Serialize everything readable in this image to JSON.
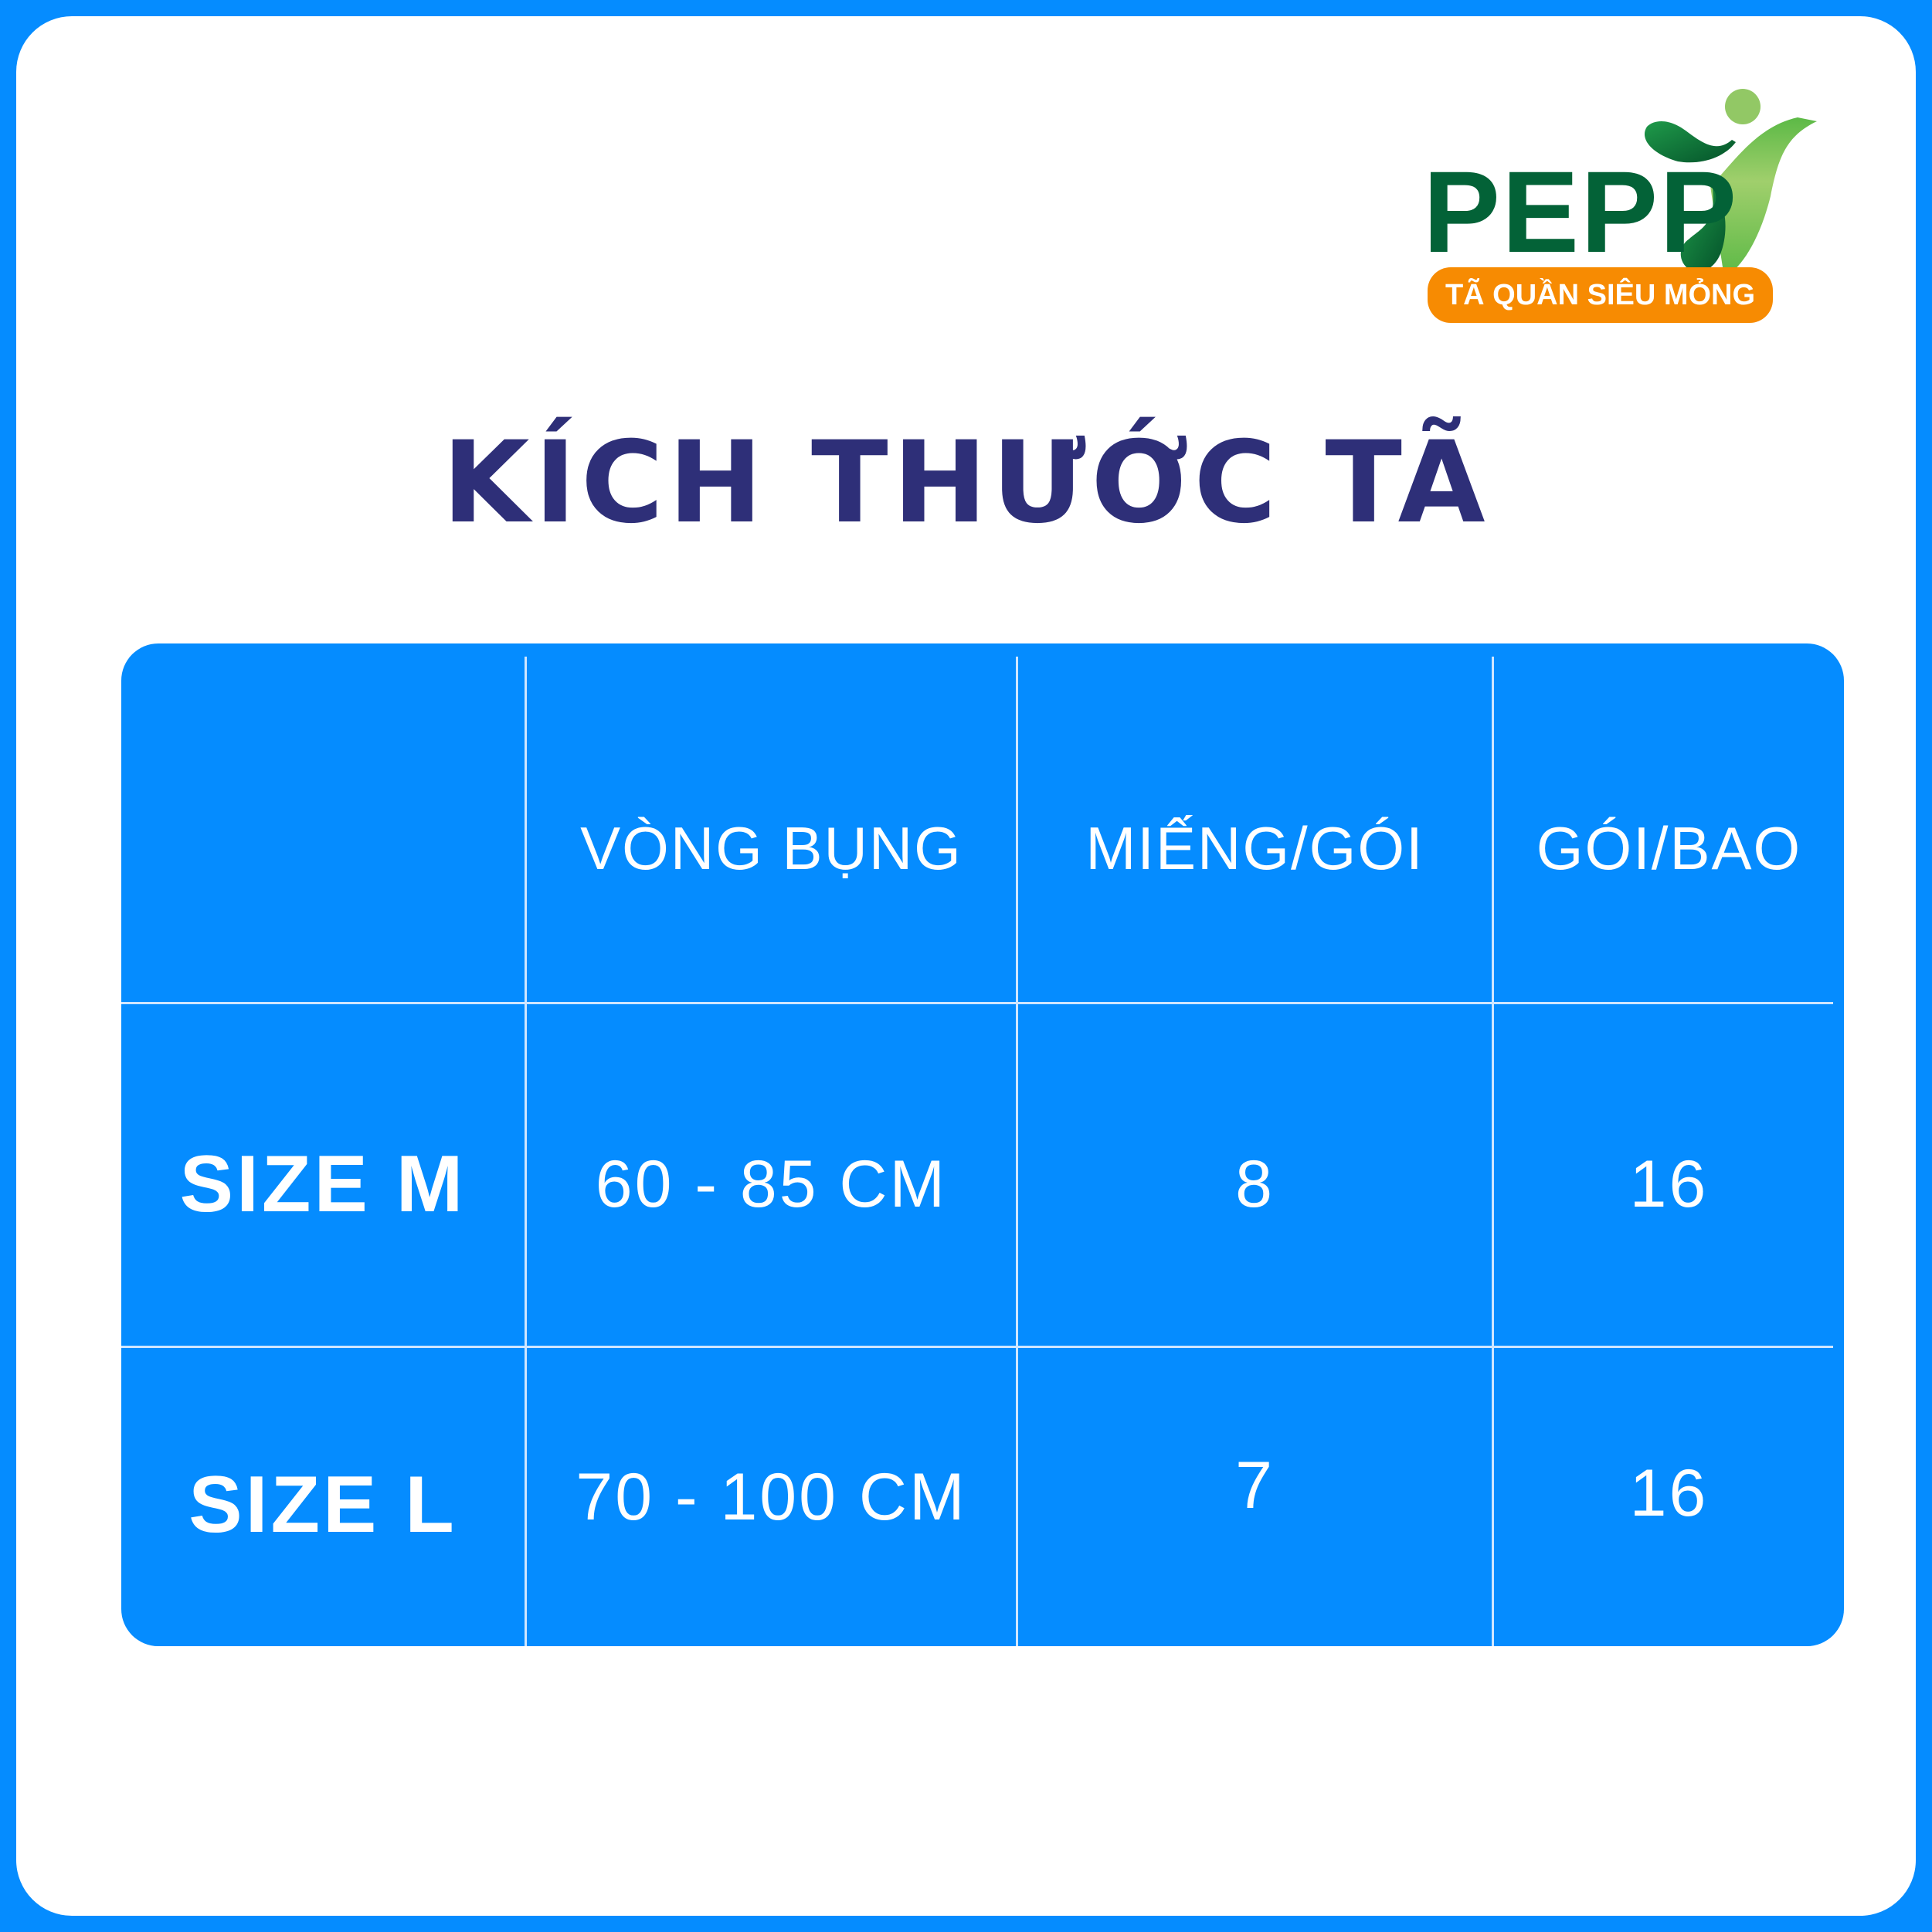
{
  "brand": {
    "name": "PEPP",
    "tagline": "TÃ QUẦN SIÊU MỎNG",
    "colors": {
      "green": "#036237",
      "orange": "#f78b02",
      "blue": "#058cff",
      "title": "#2e2f78"
    }
  },
  "title": "KÍCH THƯỚC TÃ",
  "table": {
    "headers": [
      "",
      "VÒNG BỤNG",
      "MIẾNG/GÓI",
      "GÓI/BAO"
    ],
    "rows": [
      {
        "size": "SIZE M",
        "waist": "60 - 85 CM",
        "pieces_per_pack": "8",
        "packs_per_bag": "16"
      },
      {
        "size": "SIZE L",
        "waist": "70 - 100 CM",
        "pieces_per_pack": "7",
        "packs_per_bag": "16"
      }
    ]
  }
}
